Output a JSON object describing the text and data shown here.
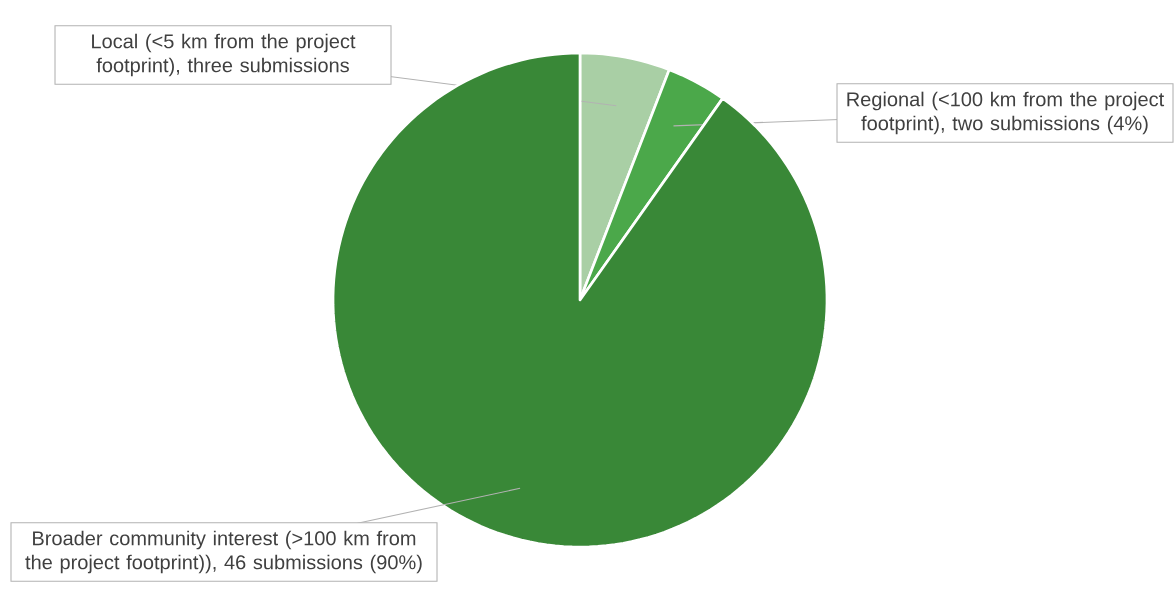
{
  "chart_data": {
    "type": "pie",
    "categories": [
      "Local (<5 km from the project footprint), three submissions",
      "Regional (<100 km from the project footprint), two submissions (4%)",
      "Broader community interest (>100 km from the project footprint)), 46 submissions (90%)"
    ],
    "values": [
      3,
      2,
      46
    ],
    "colors": [
      "#a9cfa5",
      "#4ba84a",
      "#398837"
    ]
  }
}
